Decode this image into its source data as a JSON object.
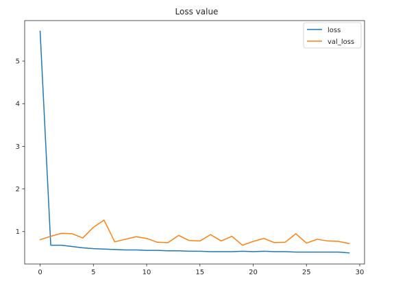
{
  "chart_data": {
    "type": "line",
    "title": "Loss value",
    "xlabel": "",
    "ylabel": "",
    "xlim": [
      -1.45,
      30.45
    ],
    "ylim": [
      0.24,
      5.95
    ],
    "x_ticks": [
      0,
      5,
      10,
      15,
      20,
      25,
      30
    ],
    "y_ticks": [
      1,
      2,
      3,
      4,
      5
    ],
    "grid": false,
    "legend_position": "top-right",
    "x": [
      0,
      1,
      2,
      3,
      4,
      5,
      6,
      7,
      8,
      9,
      10,
      11,
      12,
      13,
      14,
      15,
      16,
      17,
      18,
      19,
      20,
      21,
      22,
      23,
      24,
      25,
      26,
      27,
      28,
      29
    ],
    "series": [
      {
        "name": "loss",
        "color": "#1f77b4",
        "values": [
          5.7,
          0.68,
          0.68,
          0.65,
          0.62,
          0.6,
          0.59,
          0.58,
          0.57,
          0.57,
          0.56,
          0.56,
          0.55,
          0.55,
          0.54,
          0.54,
          0.53,
          0.53,
          0.53,
          0.54,
          0.53,
          0.54,
          0.53,
          0.53,
          0.52,
          0.52,
          0.52,
          0.52,
          0.52,
          0.5
        ]
      },
      {
        "name": "val_loss",
        "color": "#ff7f0e",
        "values": [
          0.81,
          0.89,
          0.96,
          0.95,
          0.85,
          1.1,
          1.27,
          0.76,
          0.82,
          0.88,
          0.84,
          0.75,
          0.74,
          0.91,
          0.79,
          0.78,
          0.93,
          0.78,
          0.89,
          0.68,
          0.77,
          0.84,
          0.74,
          0.75,
          0.95,
          0.73,
          0.82,
          0.78,
          0.77,
          0.72
        ]
      }
    ]
  }
}
